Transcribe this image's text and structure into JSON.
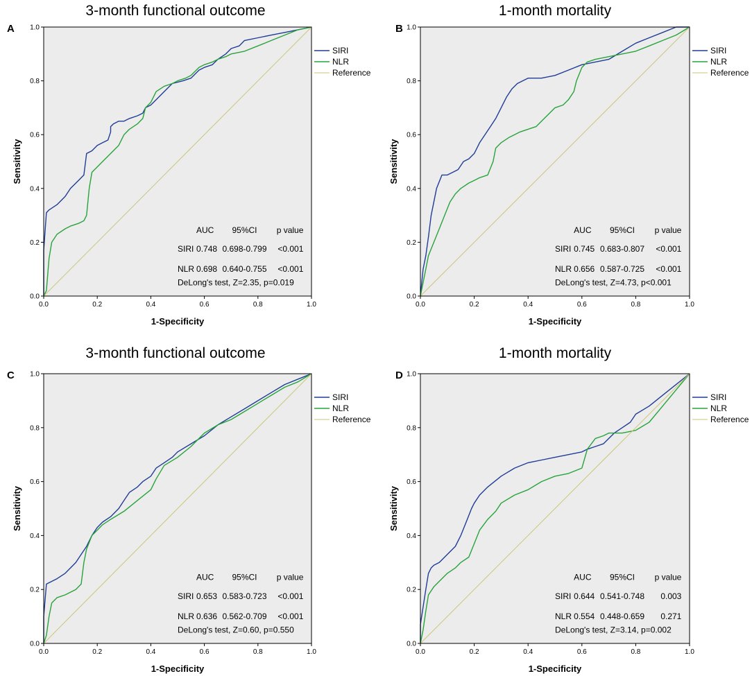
{
  "figure": {
    "panels": [
      {
        "panel_label": "A",
        "title": "3-month functional outcome",
        "xlabel": "1-Specificity",
        "ylabel": "Sensitivity",
        "x_ticks": [
          "0.0",
          "0.2",
          "0.4",
          "0.6",
          "0.8",
          "1.0"
        ],
        "y_ticks": [
          "0.0",
          "0.2",
          "0.4",
          "0.6",
          "0.8",
          "1.0"
        ],
        "legend": [
          "SIRI",
          "NLR",
          "Reference"
        ],
        "stats": {
          "header": [
            "AUC",
            "95%CI",
            "p value"
          ],
          "rows": [
            [
              "SIRI",
              "0.748",
              "0.698-0.799",
              "<0.001"
            ],
            [
              "NLR",
              "0.698",
              "0.640-0.755",
              "<0.001"
            ]
          ],
          "delong": "DeLong's test, Z=2.35, p=0.019"
        }
      },
      {
        "panel_label": "B",
        "title": "1-month mortality",
        "xlabel": "1-Specificity",
        "ylabel": "Sensitivity",
        "x_ticks": [
          "0.0",
          "0.2",
          "0.4",
          "0.6",
          "0.8",
          "1.0"
        ],
        "y_ticks": [
          "0.0",
          "0.2",
          "0.4",
          "0.6",
          "0.8",
          "1.0"
        ],
        "legend": [
          "SIRI",
          "NLR",
          "Reference"
        ],
        "stats": {
          "header": [
            "AUC",
            "95%CI",
            "p value"
          ],
          "rows": [
            [
              "SIRI",
              "0.745",
              "0.683-0.807",
              "<0.001"
            ],
            [
              "NLR",
              "0.656",
              "0.587-0.725",
              "<0.001"
            ]
          ],
          "delong": "DeLong's test, Z=4.73, p<0.001"
        }
      },
      {
        "panel_label": "C",
        "title": "3-month functional outcome",
        "xlabel": "1-Specificity",
        "ylabel": "Sensitivity",
        "x_ticks": [
          "0.0",
          "0.2",
          "0.4",
          "0.6",
          "0.8",
          "1.0"
        ],
        "y_ticks": [
          "0.0",
          "0.2",
          "0.4",
          "0.6",
          "0.8",
          "1.0"
        ],
        "legend": [
          "SIRI",
          "NLR",
          "Reference"
        ],
        "stats": {
          "header": [
            "AUC",
            "95%CI",
            "p value"
          ],
          "rows": [
            [
              "SIRI",
              "0.653",
              "0.583-0.723",
              "<0.001"
            ],
            [
              "NLR",
              "0.636",
              "0.562-0.709",
              "<0.001"
            ]
          ],
          "delong": "DeLong's test, Z=0.60, p=0.550"
        }
      },
      {
        "panel_label": "D",
        "title": "1-month mortality",
        "xlabel": "1-Specificity",
        "ylabel": "Sensitivity",
        "x_ticks": [
          "0.0",
          "0.2",
          "0.4",
          "0.6",
          "0.8",
          "1.0"
        ],
        "y_ticks": [
          "0.0",
          "0.2",
          "0.4",
          "0.6",
          "0.8",
          "1.0"
        ],
        "legend": [
          "SIRI",
          "NLR",
          "Reference"
        ],
        "stats": {
          "header": [
            "AUC",
            "95%CI",
            "p value"
          ],
          "rows": [
            [
              "SIRI",
              "0.644",
              "0.541-0.748",
              "0.003"
            ],
            [
              "NLR",
              "0.554",
              "0.448-0.659",
              "0.271"
            ]
          ],
          "delong": "DeLong's test, Z=3.14, p=0.002"
        }
      }
    ]
  },
  "colors": {
    "siri": "#1f3c96",
    "nlr": "#27a33a",
    "reference": "#c9c77a",
    "plot_bg": "#ececec"
  },
  "chart_data": [
    {
      "type": "line",
      "title": "3-month functional outcome",
      "xlabel": "1-Specificity",
      "ylabel": "Sensitivity",
      "xlim": [
        0,
        1
      ],
      "ylim": [
        0,
        1
      ],
      "series": [
        {
          "name": "SIRI",
          "x": [
            0,
            0,
            0.01,
            0.02,
            0.05,
            0.08,
            0.1,
            0.13,
            0.15,
            0.16,
            0.18,
            0.2,
            0.22,
            0.24,
            0.25,
            0.25,
            0.26,
            0.28,
            0.3,
            0.32,
            0.35,
            0.37,
            0.38,
            0.4,
            0.41,
            0.43,
            0.45,
            0.48,
            0.52,
            0.55,
            0.58,
            0.6,
            0.63,
            0.65,
            0.68,
            0.7,
            0.73,
            0.75,
            0.8,
            0.85,
            0.9,
            0.95,
            1
          ],
          "y": [
            0,
            0.17,
            0.31,
            0.32,
            0.34,
            0.37,
            0.4,
            0.43,
            0.45,
            0.53,
            0.54,
            0.56,
            0.57,
            0.58,
            0.61,
            0.63,
            0.64,
            0.65,
            0.65,
            0.66,
            0.67,
            0.68,
            0.7,
            0.71,
            0.72,
            0.74,
            0.76,
            0.79,
            0.8,
            0.81,
            0.84,
            0.85,
            0.86,
            0.88,
            0.9,
            0.92,
            0.93,
            0.95,
            0.96,
            0.97,
            0.98,
            0.99,
            1
          ]
        },
        {
          "name": "NLR",
          "x": [
            0,
            0.01,
            0.02,
            0.03,
            0.05,
            0.08,
            0.1,
            0.13,
            0.15,
            0.16,
            0.17,
            0.18,
            0.2,
            0.22,
            0.25,
            0.28,
            0.3,
            0.32,
            0.35,
            0.37,
            0.38,
            0.4,
            0.42,
            0.45,
            0.48,
            0.5,
            0.53,
            0.55,
            0.58,
            0.6,
            0.63,
            0.65,
            0.68,
            0.7,
            0.75,
            0.8,
            0.85,
            0.9,
            0.95,
            1
          ],
          "y": [
            0,
            0.02,
            0.14,
            0.2,
            0.23,
            0.25,
            0.26,
            0.27,
            0.28,
            0.3,
            0.4,
            0.46,
            0.48,
            0.5,
            0.53,
            0.56,
            0.6,
            0.62,
            0.64,
            0.66,
            0.7,
            0.72,
            0.76,
            0.78,
            0.79,
            0.8,
            0.81,
            0.82,
            0.85,
            0.86,
            0.87,
            0.88,
            0.89,
            0.9,
            0.91,
            0.93,
            0.95,
            0.97,
            0.99,
            1
          ]
        },
        {
          "name": "Reference",
          "x": [
            0,
            1
          ],
          "y": [
            0,
            1
          ]
        }
      ]
    },
    {
      "type": "line",
      "title": "1-month mortality",
      "xlabel": "1-Specificity",
      "ylabel": "Sensitivity",
      "xlim": [
        0,
        1
      ],
      "ylim": [
        0,
        1
      ],
      "series": [
        {
          "name": "SIRI",
          "x": [
            0,
            0.01,
            0.02,
            0.03,
            0.04,
            0.05,
            0.06,
            0.08,
            0.1,
            0.12,
            0.14,
            0.16,
            0.18,
            0.2,
            0.22,
            0.24,
            0.26,
            0.28,
            0.3,
            0.32,
            0.34,
            0.36,
            0.38,
            0.4,
            0.45,
            0.5,
            0.55,
            0.6,
            0.65,
            0.7,
            0.75,
            0.8,
            0.85,
            0.9,
            0.95,
            1
          ],
          "y": [
            0,
            0.1,
            0.15,
            0.22,
            0.3,
            0.35,
            0.4,
            0.45,
            0.45,
            0.46,
            0.47,
            0.5,
            0.51,
            0.53,
            0.57,
            0.6,
            0.63,
            0.66,
            0.7,
            0.74,
            0.77,
            0.79,
            0.8,
            0.81,
            0.81,
            0.82,
            0.84,
            0.86,
            0.87,
            0.88,
            0.91,
            0.94,
            0.96,
            0.98,
            1,
            1
          ]
        },
        {
          "name": "NLR",
          "x": [
            0,
            0.01,
            0.02,
            0.03,
            0.05,
            0.07,
            0.09,
            0.11,
            0.13,
            0.15,
            0.18,
            0.2,
            0.22,
            0.25,
            0.27,
            0.28,
            0.3,
            0.33,
            0.35,
            0.37,
            0.4,
            0.43,
            0.45,
            0.48,
            0.5,
            0.53,
            0.55,
            0.57,
            0.58,
            0.6,
            0.62,
            0.65,
            0.7,
            0.75,
            0.8,
            0.85,
            0.9,
            0.95,
            1
          ],
          "y": [
            0,
            0.05,
            0.1,
            0.15,
            0.2,
            0.25,
            0.3,
            0.35,
            0.38,
            0.4,
            0.42,
            0.43,
            0.44,
            0.45,
            0.5,
            0.55,
            0.57,
            0.59,
            0.6,
            0.61,
            0.62,
            0.63,
            0.65,
            0.68,
            0.7,
            0.71,
            0.73,
            0.76,
            0.8,
            0.85,
            0.87,
            0.88,
            0.89,
            0.9,
            0.91,
            0.93,
            0.95,
            0.97,
            1
          ]
        },
        {
          "name": "Reference",
          "x": [
            0,
            1
          ],
          "y": [
            0,
            1
          ]
        }
      ]
    },
    {
      "type": "line",
      "title": "3-month functional outcome",
      "xlabel": "1-Specificity",
      "ylabel": "Sensitivity",
      "xlim": [
        0,
        1
      ],
      "ylim": [
        0,
        1
      ],
      "series": [
        {
          "name": "SIRI",
          "x": [
            0,
            0,
            0.01,
            0.03,
            0.05,
            0.08,
            0.1,
            0.12,
            0.14,
            0.16,
            0.18,
            0.2,
            0.22,
            0.25,
            0.28,
            0.3,
            0.32,
            0.35,
            0.37,
            0.4,
            0.42,
            0.45,
            0.48,
            0.5,
            0.55,
            0.6,
            0.65,
            0.7,
            0.75,
            0.8,
            0.85,
            0.9,
            0.95,
            1
          ],
          "y": [
            0,
            0.1,
            0.22,
            0.23,
            0.24,
            0.26,
            0.28,
            0.3,
            0.33,
            0.36,
            0.4,
            0.43,
            0.45,
            0.47,
            0.5,
            0.53,
            0.56,
            0.58,
            0.6,
            0.62,
            0.65,
            0.67,
            0.69,
            0.71,
            0.74,
            0.77,
            0.81,
            0.84,
            0.87,
            0.9,
            0.93,
            0.96,
            0.98,
            1
          ]
        },
        {
          "name": "NLR",
          "x": [
            0,
            0.01,
            0.02,
            0.03,
            0.05,
            0.08,
            0.1,
            0.12,
            0.14,
            0.15,
            0.16,
            0.18,
            0.2,
            0.22,
            0.25,
            0.3,
            0.35,
            0.4,
            0.42,
            0.45,
            0.5,
            0.55,
            0.6,
            0.65,
            0.7,
            0.75,
            0.8,
            0.85,
            0.9,
            0.95,
            1
          ],
          "y": [
            0,
            0.03,
            0.1,
            0.15,
            0.17,
            0.18,
            0.19,
            0.2,
            0.22,
            0.3,
            0.35,
            0.4,
            0.42,
            0.44,
            0.46,
            0.49,
            0.53,
            0.57,
            0.61,
            0.66,
            0.69,
            0.73,
            0.78,
            0.81,
            0.83,
            0.86,
            0.89,
            0.92,
            0.95,
            0.97,
            1
          ]
        },
        {
          "name": "Reference",
          "x": [
            0,
            1
          ],
          "y": [
            0,
            1
          ]
        }
      ]
    },
    {
      "type": "line",
      "title": "1-month mortality",
      "xlabel": "1-Specificity",
      "ylabel": "Sensitivity",
      "xlim": [
        0,
        1
      ],
      "ylim": [
        0,
        1
      ],
      "series": [
        {
          "name": "SIRI",
          "x": [
            0,
            0,
            0.02,
            0.03,
            0.04,
            0.05,
            0.07,
            0.1,
            0.13,
            0.15,
            0.17,
            0.19,
            0.2,
            0.22,
            0.25,
            0.3,
            0.35,
            0.4,
            0.45,
            0.5,
            0.55,
            0.6,
            0.62,
            0.65,
            0.68,
            0.7,
            0.72,
            0.75,
            0.78,
            0.8,
            0.85,
            0.9,
            0.95,
            1
          ],
          "y": [
            0,
            0.07,
            0.2,
            0.26,
            0.28,
            0.29,
            0.3,
            0.33,
            0.36,
            0.4,
            0.45,
            0.5,
            0.52,
            0.55,
            0.58,
            0.62,
            0.65,
            0.67,
            0.68,
            0.69,
            0.7,
            0.71,
            0.72,
            0.73,
            0.74,
            0.76,
            0.78,
            0.8,
            0.82,
            0.85,
            0.88,
            0.92,
            0.96,
            1
          ]
        },
        {
          "name": "NLR",
          "x": [
            0,
            0.01,
            0.02,
            0.03,
            0.05,
            0.08,
            0.1,
            0.13,
            0.15,
            0.18,
            0.2,
            0.22,
            0.25,
            0.28,
            0.3,
            0.35,
            0.4,
            0.45,
            0.5,
            0.55,
            0.6,
            0.62,
            0.65,
            0.68,
            0.7,
            0.75,
            0.8,
            0.85,
            0.9,
            0.95,
            1
          ],
          "y": [
            0,
            0.05,
            0.12,
            0.18,
            0.21,
            0.24,
            0.26,
            0.28,
            0.3,
            0.32,
            0.37,
            0.42,
            0.46,
            0.49,
            0.52,
            0.55,
            0.57,
            0.6,
            0.62,
            0.63,
            0.65,
            0.72,
            0.76,
            0.77,
            0.78,
            0.78,
            0.79,
            0.82,
            0.88,
            0.94,
            1
          ]
        },
        {
          "name": "Reference",
          "x": [
            0,
            1
          ],
          "y": [
            0,
            1
          ]
        }
      ]
    }
  ]
}
